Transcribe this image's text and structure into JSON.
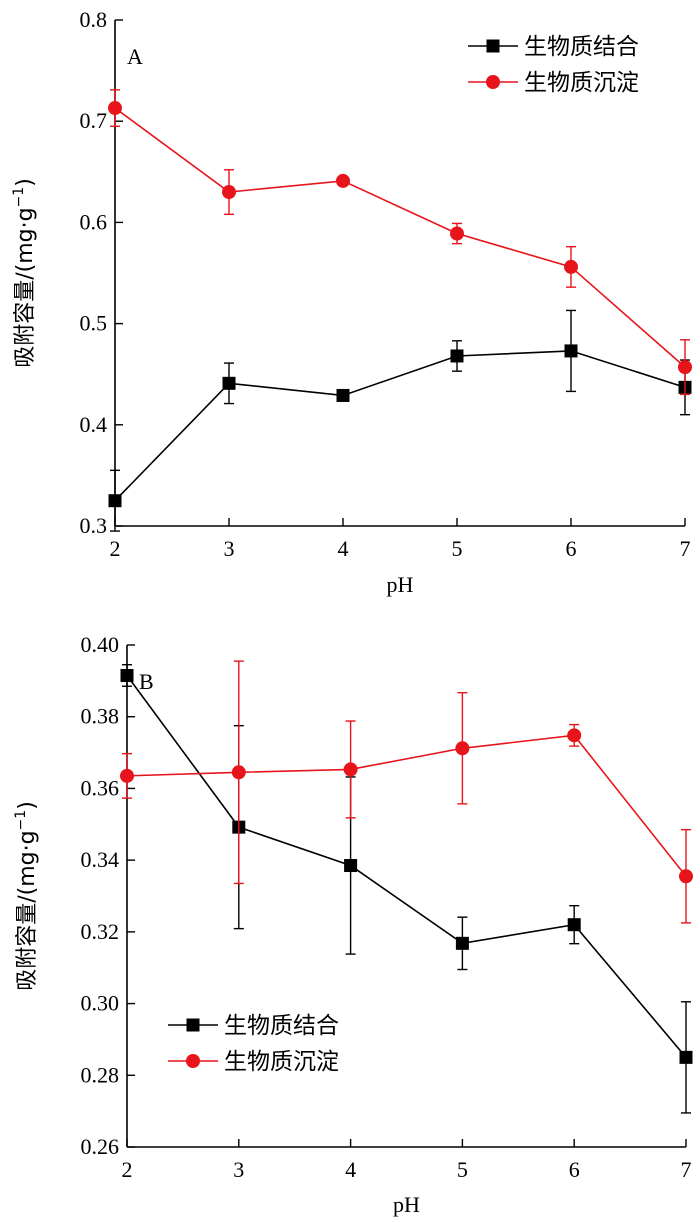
{
  "chart_data": [
    {
      "type": "line",
      "panel_label": "A",
      "xlabel": "pH",
      "ylabel": "吸附容量/(mg·g",
      "ylabel_sup": "−1",
      "ylabel_close": ")",
      "xlim": [
        2,
        7
      ],
      "ylim": [
        0.3,
        0.8
      ],
      "x_ticks": [
        "2",
        "3",
        "4",
        "5",
        "6",
        "7"
      ],
      "y_ticks": [
        "0.3",
        "0.4",
        "0.5",
        "0.6",
        "0.7",
        "0.8"
      ],
      "legend_position": "top-right",
      "x": [
        2,
        3,
        4,
        5,
        6,
        7
      ],
      "series": [
        {
          "name": "生物质结合",
          "color": "#000000",
          "marker": "square",
          "values": [
            0.325,
            0.441,
            0.429,
            0.468,
            0.473,
            0.437
          ],
          "errors": [
            0.03,
            0.02,
            0.005,
            0.015,
            0.04,
            0.027
          ]
        },
        {
          "name": "生物质沉淀",
          "color": "#e8141b",
          "marker": "circle",
          "values": [
            0.713,
            0.63,
            0.641,
            0.589,
            0.556,
            0.457
          ],
          "errors": [
            0.018,
            0.022,
            0.003,
            0.01,
            0.02,
            0.027
          ]
        }
      ]
    },
    {
      "type": "line",
      "panel_label": "B",
      "xlabel": "pH",
      "ylabel": "吸附容量/(mg·g",
      "ylabel_sup": "−1",
      "ylabel_close": ")",
      "xlim": [
        2,
        7
      ],
      "ylim": [
        0.26,
        0.4
      ],
      "x_ticks": [
        "2",
        "3",
        "4",
        "5",
        "6",
        "7"
      ],
      "y_ticks": [
        "0.26",
        "0.28",
        "0.30",
        "0.32",
        "0.34",
        "0.36",
        "0.38",
        "0.40"
      ],
      "legend_position": "bottom-left",
      "x": [
        2,
        3,
        4,
        5,
        6,
        7
      ],
      "series": [
        {
          "name": "生物质结合",
          "color": "#000000",
          "marker": "square",
          "values": [
            0.3915,
            0.3492,
            0.3385,
            0.3168,
            0.322,
            0.285
          ],
          "errors": [
            0.003,
            0.0283,
            0.0247,
            0.0073,
            0.0053,
            0.0155
          ]
        },
        {
          "name": "生物质沉淀",
          "color": "#e8141b",
          "marker": "circle",
          "values": [
            0.3635,
            0.3645,
            0.3653,
            0.3712,
            0.3748,
            0.3355
          ],
          "errors": [
            0.0062,
            0.031,
            0.0135,
            0.0155,
            0.003,
            0.013
          ]
        }
      ]
    }
  ]
}
